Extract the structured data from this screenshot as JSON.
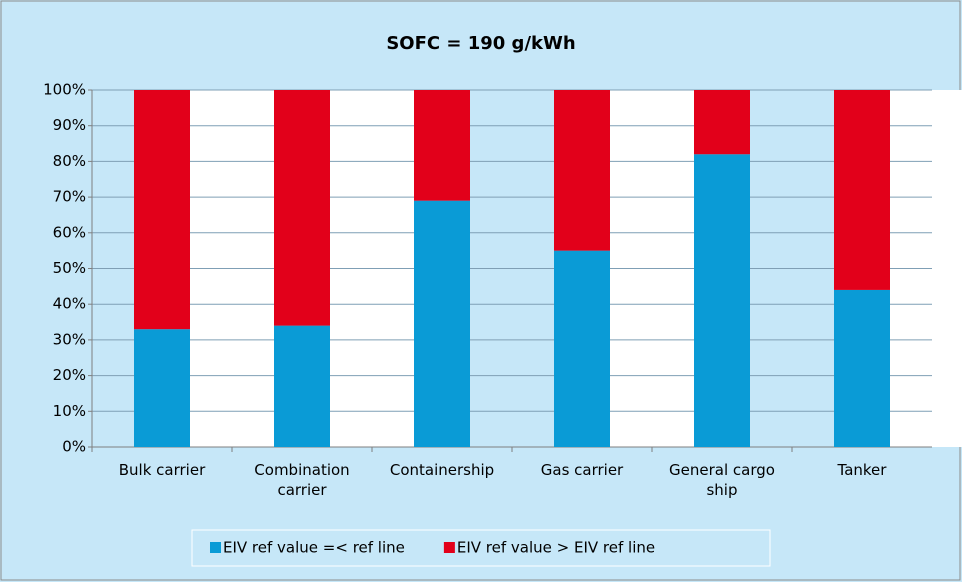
{
  "chart_data": {
    "type": "stacked_bar",
    "title": "SOFC = 190 g/kWh",
    "categories": [
      "Bulk carrier",
      "Combination carrier",
      "Containership",
      "Gas carrier",
      "General cargo ship",
      "Tanker"
    ],
    "series": [
      {
        "name": "EIV ref value =< ref line",
        "color": "#0a9bd6",
        "values": [
          33,
          34,
          69,
          55,
          82,
          44
        ]
      },
      {
        "name": "EIV ref value > EIV ref line",
        "color": "#e2001a",
        "values": [
          67,
          66,
          31,
          45,
          18,
          56
        ]
      }
    ],
    "ylim": [
      0,
      100
    ],
    "yticks": [
      {
        "value": 0,
        "label": "0%"
      },
      {
        "value": 10,
        "label": "10%"
      },
      {
        "value": 20,
        "label": "20%"
      },
      {
        "value": 30,
        "label": "30%"
      },
      {
        "value": 40,
        "label": "40%"
      },
      {
        "value": 50,
        "label": "50%"
      },
      {
        "value": 60,
        "label": "60%"
      },
      {
        "value": 70,
        "label": "70%"
      },
      {
        "value": 80,
        "label": "80%"
      },
      {
        "value": 90,
        "label": "90%"
      },
      {
        "value": 100,
        "label": "100%"
      }
    ],
    "grid": true,
    "legend": "bottom"
  }
}
